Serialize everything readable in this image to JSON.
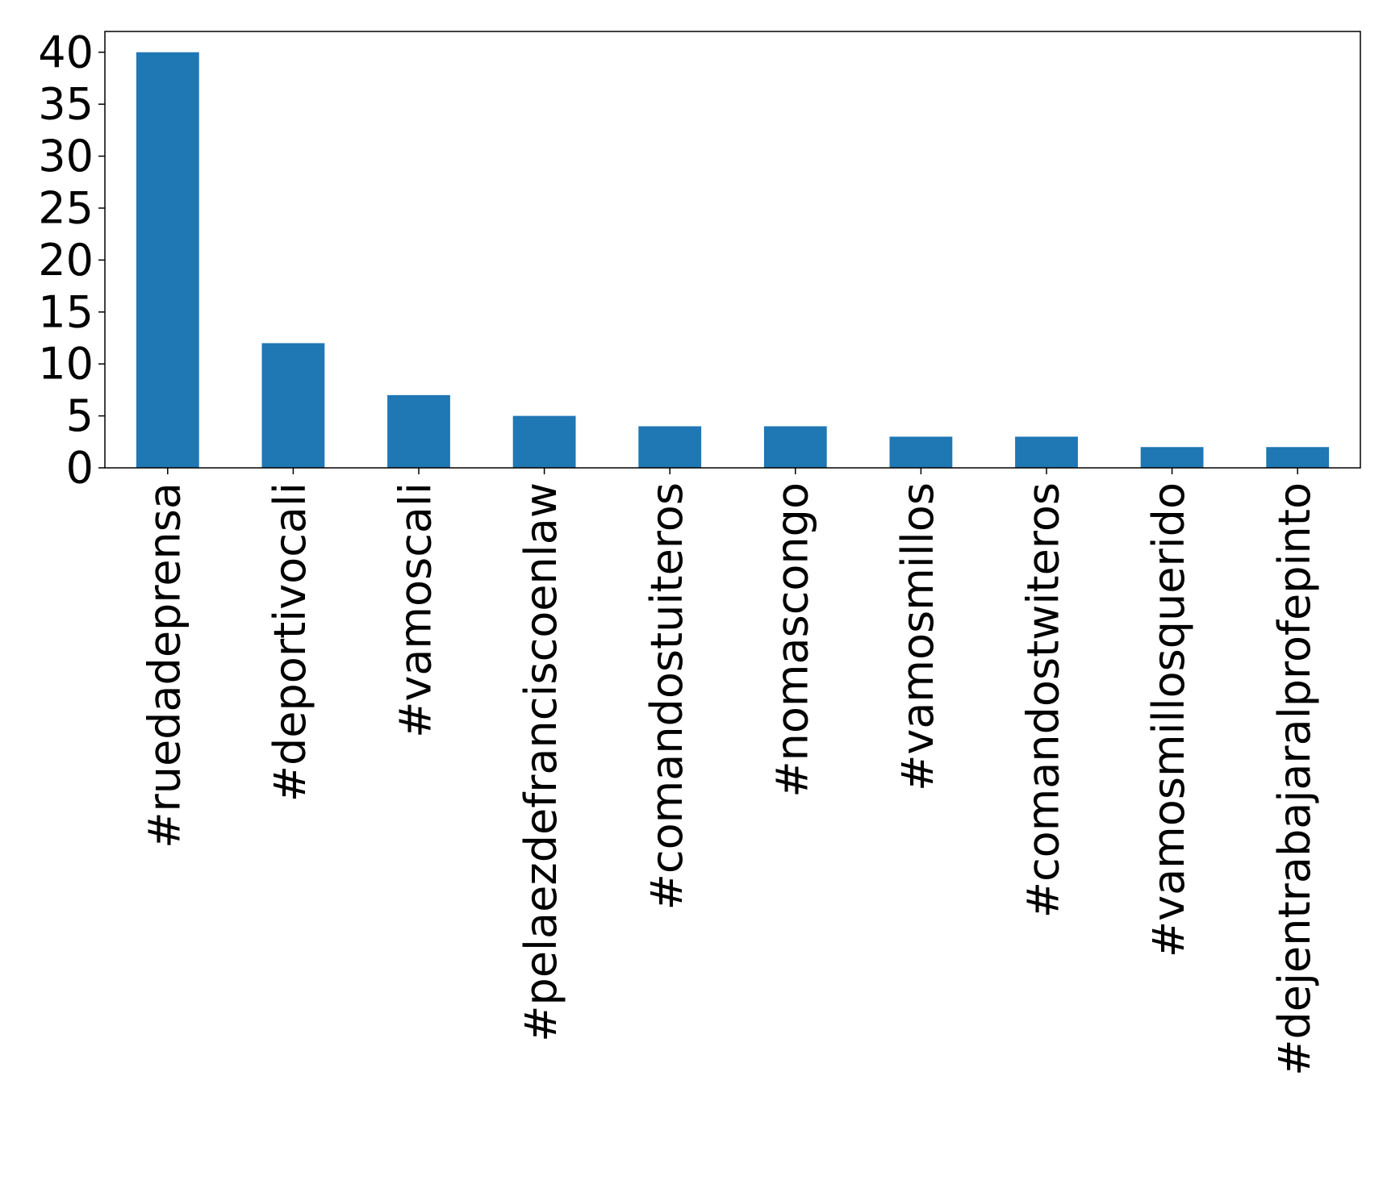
{
  "colors": {
    "bar": "#1f77b4",
    "axis": "#000000",
    "background": "#ffffff"
  },
  "chart_data": {
    "type": "bar",
    "title": "",
    "xlabel": "",
    "ylabel": "",
    "categories": [
      "#ruedadeprensa",
      "#deportivocali",
      "#vamoscali",
      "#pelaezdefranciscoenlaw",
      "#comandostuiteros",
      "#nomascongo",
      "#vamosmillos",
      "#comandostwiteros",
      "#vamosmillosquerido",
      "#dejentrabajaralprofepinto"
    ],
    "values": [
      40,
      12,
      7,
      5,
      4,
      4,
      3,
      3,
      2,
      2
    ],
    "ylim": [
      0,
      42
    ],
    "yticks": [
      0,
      5,
      10,
      15,
      20,
      25,
      30,
      35,
      40
    ],
    "grid": false,
    "legend": "none"
  }
}
